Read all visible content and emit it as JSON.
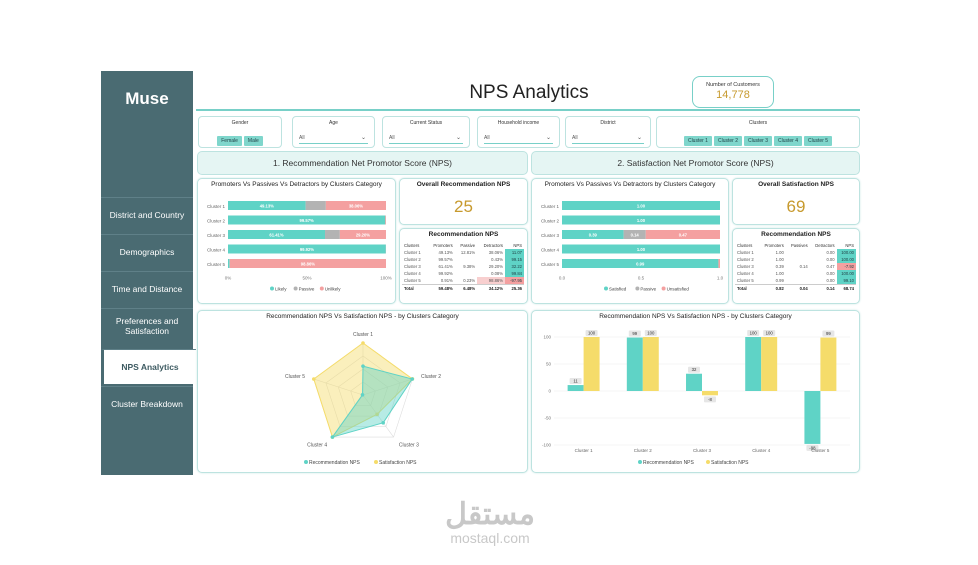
{
  "brand": "Muse",
  "page_title": "NPS Analytics",
  "kpi_customers": {
    "label": "Number of Customers",
    "value": "14,778"
  },
  "nav": [
    {
      "label": "District and Country",
      "active": false
    },
    {
      "label": "Demographics",
      "active": false
    },
    {
      "label": "Time and Distance",
      "active": false
    },
    {
      "label": "Preferences and Satisfaction",
      "active": false
    },
    {
      "label": "NPS Analytics",
      "active": true
    },
    {
      "label": "Cluster Breakdown",
      "active": false
    }
  ],
  "slicers": {
    "gender": {
      "label": "Gender",
      "options": [
        "Female",
        "Male"
      ]
    },
    "age": {
      "label": "Age",
      "value": "All"
    },
    "status": {
      "label": "Current Status",
      "value": "All"
    },
    "income": {
      "label": "Household income",
      "value": "All"
    },
    "district": {
      "label": "District",
      "value": "All"
    },
    "clusters": {
      "label": "Clusters",
      "options": [
        "Cluster 1",
        "Cluster 2",
        "Cluster 3",
        "Cluster 4",
        "Cluster 5"
      ]
    }
  },
  "sections": {
    "rec": "1. Recommendation Net Promotor Score (NPS)",
    "sat": "2. Satisfaction Net Promotor Score (NPS)"
  },
  "rec_nps": {
    "label": "Overall Recommendation NPS",
    "value": "25"
  },
  "sat_nps": {
    "label": "Overall Satisfaction NPS",
    "value": "69"
  },
  "rec_table": {
    "title": "Recommendation NPS",
    "headers": [
      "Clusters",
      "Promoters",
      "Passive",
      "Detractors",
      "NPS"
    ],
    "rows": [
      [
        "Cluster 1",
        "49.13%",
        "12.81%",
        "38.06%",
        "11.07"
      ],
      [
        "Cluster 2",
        "99.57%",
        "",
        "0.43%",
        "99.15"
      ],
      [
        "Cluster 3",
        "61.41%",
        "9.38%",
        "29.20%",
        "32.22"
      ],
      [
        "Cluster 4",
        "99.92%",
        "",
        "0.08%",
        "99.84"
      ],
      [
        "Cluster 5",
        "0.91%",
        "0.23%",
        "98.86%",
        "-97.95"
      ]
    ],
    "total": [
      "Total",
      "59.48%",
      "6.48%",
      "34.12%",
      "25.36"
    ]
  },
  "sat_table": {
    "title": "Recommendation NPS",
    "headers": [
      "Clusters",
      "Promoters",
      "Passives",
      "Detractors",
      "NPS"
    ],
    "rows": [
      [
        "Cluster 1",
        "1.00",
        "",
        "0.00",
        "100.00"
      ],
      [
        "Cluster 2",
        "1.00",
        "",
        "0.00",
        "100.00"
      ],
      [
        "Cluster 3",
        "0.39",
        "0.14",
        "0.47",
        "-7.92"
      ],
      [
        "Cluster 4",
        "1.00",
        "",
        "0.00",
        "100.00"
      ],
      [
        "Cluster 5",
        "0.99",
        "",
        "0.00",
        "99.10"
      ]
    ],
    "total": [
      "Total",
      "0.82",
      "0.04",
      "0.14",
      "68.74"
    ]
  },
  "colors": {
    "teal": "#5fd3c6",
    "grey": "#b3b3b3",
    "red": "#f4a0a0",
    "yellow": "#f5dc6a",
    "gold": "#c79a2e"
  },
  "chart_data": [
    {
      "type": "bar",
      "orientation": "horizontal-stacked",
      "title": "Promoters Vs Passives Vs Detractors by Clusters Category",
      "categories": [
        "Cluster 1",
        "Cluster 2",
        "Cluster 3",
        "Cluster 4",
        "Cluster 5"
      ],
      "series": [
        {
          "name": "Likely",
          "values": [
            49.13,
            99.57,
            61.41,
            99.92,
            0.91
          ],
          "labels": [
            "49.13%",
            "99.57%",
            "61.41%",
            "99.92%",
            ""
          ]
        },
        {
          "name": "Passive",
          "values": [
            12.81,
            0,
            9.38,
            0,
            0.23
          ],
          "labels": [
            "",
            "",
            "",
            "",
            ""
          ]
        },
        {
          "name": "Unlikely",
          "values": [
            38.06,
            0.43,
            29.2,
            0.08,
            98.86
          ],
          "labels": [
            "38.06%",
            "",
            "29.20%",
            "",
            "98.86%"
          ]
        }
      ],
      "xticks": [
        "0%",
        "50%",
        "100%"
      ],
      "xlim": [
        0,
        100
      ]
    },
    {
      "type": "bar",
      "orientation": "horizontal-stacked",
      "title": "Promoters Vs Passives Vs Detractors by Clusters Category",
      "categories": [
        "Cluster 1",
        "Cluster 2",
        "Cluster 3",
        "Cluster 4",
        "Cluster 5"
      ],
      "series": [
        {
          "name": "Satisfied",
          "values": [
            1.0,
            1.0,
            0.39,
            1.0,
            0.99
          ],
          "labels": [
            "1.00",
            "1.00",
            "0.39",
            "1.00",
            "0.99"
          ]
        },
        {
          "name": "Passive",
          "values": [
            0,
            0,
            0.14,
            0,
            0
          ],
          "labels": [
            "",
            "",
            "0.14",
            "",
            ""
          ]
        },
        {
          "name": "Unsatisfied",
          "values": [
            0,
            0,
            0.47,
            0,
            0.01
          ],
          "labels": [
            "",
            "",
            "0.47",
            "",
            ""
          ]
        }
      ],
      "xticks": [
        "0.0",
        "0.5",
        "1.0"
      ],
      "xlim": [
        0,
        1
      ]
    },
    {
      "type": "radar",
      "title": "Recommendation NPS Vs Satisfaction NPS - by Clusters Category",
      "categories": [
        "Cluster 1",
        "Cluster 2",
        "Cluster 3",
        "Cluster 4",
        "Cluster 5"
      ],
      "series": [
        {
          "name": "Recommendation NPS",
          "values": [
            11,
            99,
            32,
            100,
            -98
          ]
        },
        {
          "name": "Satisfaction NPS",
          "values": [
            100,
            100,
            -8,
            100,
            99
          ]
        }
      ],
      "rlim": [
        -100,
        100
      ]
    },
    {
      "type": "bar",
      "orientation": "vertical-grouped",
      "title": "Recommendation NPS Vs Satisfaction NPS - by Clusters Category",
      "categories": [
        "Cluster 1",
        "Cluster 2",
        "Cluster 3",
        "Cluster 4",
        "Cluster 5"
      ],
      "series": [
        {
          "name": "Recommendation NPS",
          "values": [
            11,
            99,
            32,
            100,
            -98
          ],
          "labels": [
            "11",
            "99",
            "32",
            "100",
            "-98"
          ]
        },
        {
          "name": "Satisfaction NPS",
          "values": [
            100,
            100,
            -8,
            100,
            99
          ],
          "labels": [
            "100",
            "100",
            "-8",
            "100",
            "99"
          ]
        }
      ],
      "yticks": [
        "100",
        "50",
        "0",
        "-50",
        "-100"
      ],
      "ylim": [
        -100,
        100
      ]
    }
  ]
}
